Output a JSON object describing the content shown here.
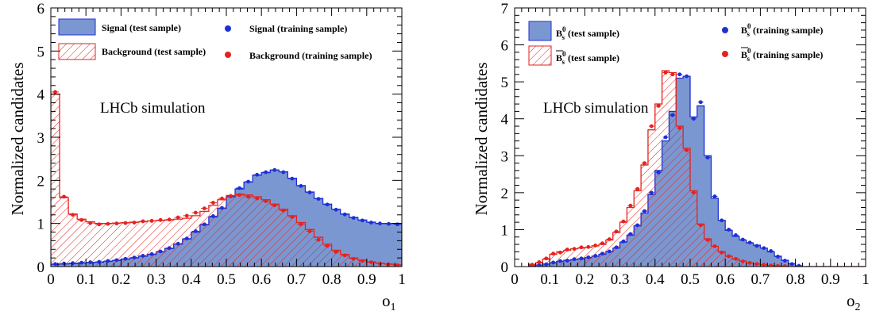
{
  "colors": {
    "signal_fill": "#7b97d1",
    "signal_line": "#1f2fd6",
    "background_line": "#e6221c",
    "axis": "#000000"
  },
  "chart_data": [
    {
      "type": "histogram",
      "xlabel": "o",
      "xlabel_sub": "1",
      "ylabel": "Normalized candidates",
      "annotation": "LHCb simulation",
      "xlim": [
        0,
        1
      ],
      "ylim": [
        0,
        6
      ],
      "xticks": [
        "0",
        "0.1",
        "0.2",
        "0.3",
        "0.4",
        "0.5",
        "0.6",
        "0.7",
        "0.8",
        "0.9",
        "1"
      ],
      "yticks": [
        "0",
        "1",
        "2",
        "3",
        "4",
        "5",
        "6"
      ],
      "bin_width": 0.025,
      "legend": [
        {
          "label": "Signal (test sample)",
          "style": "filled",
          "color": "#1f2fd6"
        },
        {
          "label": "Signal (training sample)",
          "style": "marker",
          "color": "#1f2fd6"
        },
        {
          "label": "Background (test sample)",
          "style": "hatched",
          "color": "#e6221c"
        },
        {
          "label": "Background (training sample)",
          "style": "marker",
          "color": "#e6221c"
        }
      ],
      "series": [
        {
          "name": "Signal (test sample)",
          "style": "filled",
          "values": [
            0.05,
            0.06,
            0.07,
            0.08,
            0.09,
            0.1,
            0.12,
            0.14,
            0.17,
            0.2,
            0.24,
            0.28,
            0.34,
            0.42,
            0.52,
            0.64,
            0.8,
            0.97,
            1.15,
            1.35,
            1.62,
            1.8,
            1.96,
            2.12,
            2.18,
            2.24,
            2.2,
            2.05,
            1.88,
            1.73,
            1.58,
            1.45,
            1.33,
            1.22,
            1.14,
            1.08,
            1.03,
            1.0,
            1.0,
            1.0
          ]
        },
        {
          "name": "Signal (training sample)",
          "style": "marker",
          "values": [
            0.06,
            0.07,
            0.08,
            0.09,
            0.1,
            0.11,
            0.13,
            0.15,
            0.18,
            0.21,
            0.25,
            0.29,
            0.35,
            0.43,
            0.53,
            0.65,
            0.82,
            0.98,
            1.17,
            1.36,
            1.63,
            1.82,
            1.97,
            2.13,
            2.19,
            2.24,
            2.19,
            2.04,
            1.87,
            1.72,
            1.57,
            1.44,
            1.32,
            1.21,
            1.13,
            1.07,
            1.02,
            1.0,
            0.99,
            0.98
          ]
        },
        {
          "name": "Background (test sample)",
          "style": "hatched",
          "values": [
            4.0,
            1.6,
            1.22,
            1.1,
            1.04,
            1.0,
            1.0,
            1.01,
            1.02,
            1.03,
            1.04,
            1.06,
            1.07,
            1.08,
            1.1,
            1.12,
            1.18,
            1.28,
            1.42,
            1.55,
            1.65,
            1.68,
            1.66,
            1.62,
            1.55,
            1.45,
            1.33,
            1.18,
            1.02,
            0.86,
            0.68,
            0.52,
            0.38,
            0.28,
            0.2,
            0.15,
            0.11,
            0.08,
            0.06,
            0.04
          ]
        },
        {
          "name": "Background (training sample)",
          "style": "marker",
          "values": [
            4.05,
            1.62,
            1.2,
            1.08,
            1.01,
            0.98,
            0.99,
            1.0,
            1.01,
            1.02,
            1.05,
            1.06,
            1.08,
            1.09,
            1.14,
            1.18,
            1.25,
            1.35,
            1.48,
            1.58,
            1.64,
            1.66,
            1.62,
            1.58,
            1.52,
            1.42,
            1.3,
            1.15,
            0.98,
            0.82,
            0.62,
            0.48,
            0.34,
            0.26,
            0.18,
            0.13,
            0.1,
            0.07,
            0.05,
            0.03
          ]
        }
      ]
    },
    {
      "type": "histogram",
      "xlabel": "o",
      "xlabel_sub": "2",
      "ylabel": "Normalized candidates",
      "annotation": "LHCb simulation",
      "xlim": [
        0,
        1
      ],
      "ylim": [
        0,
        7
      ],
      "xticks": [
        "0",
        "0.1",
        "0.2",
        "0.3",
        "0.4",
        "0.5",
        "0.6",
        "0.7",
        "0.8",
        "0.9",
        "1"
      ],
      "yticks": [
        "0",
        "1",
        "2",
        "3",
        "4",
        "5",
        "6",
        "7"
      ],
      "bin_start": 0.04,
      "bin_width": 0.02,
      "legend": [
        {
          "label": "B",
          "label_sup": "0",
          "label_sub": "s",
          "suffix": "(test sample)",
          "style": "filled",
          "color": "#1f2fd6"
        },
        {
          "label": "B",
          "label_sup": "0",
          "label_sub": "s",
          "suffix": "(training sample)",
          "style": "marker",
          "color": "#1f2fd6"
        },
        {
          "label": "B",
          "label_sup": "0",
          "label_sub": "s",
          "suffix": "(test sample)",
          "bar": true,
          "style": "hatched",
          "color": "#e6221c"
        },
        {
          "label": "B",
          "label_sup": "0",
          "label_sub": "s",
          "suffix": "(training sample)",
          "bar": true,
          "style": "marker",
          "color": "#e6221c"
        }
      ],
      "series": [
        {
          "name": "B_s^0 (test sample)",
          "style": "filled",
          "values": [
            0.02,
            0.04,
            0.07,
            0.1,
            0.14,
            0.17,
            0.19,
            0.21,
            0.24,
            0.28,
            0.33,
            0.4,
            0.5,
            0.66,
            0.85,
            1.1,
            1.45,
            1.95,
            2.6,
            3.4,
            4.2,
            5.1,
            5.15,
            4.05,
            4.35,
            3.0,
            1.85,
            1.25,
            0.98,
            0.82,
            0.72,
            0.64,
            0.58,
            0.5,
            0.4,
            0.28,
            0.17,
            0.08,
            0.02,
            0.0,
            0.0,
            0.0,
            0.0,
            0.0,
            0.0,
            0.0,
            0.0,
            0.0
          ]
        },
        {
          "name": "B_s^0 (training sample)",
          "style": "marker",
          "values": [
            0.01,
            0.04,
            0.06,
            0.11,
            0.15,
            0.16,
            0.2,
            0.22,
            0.25,
            0.29,
            0.35,
            0.41,
            0.52,
            0.68,
            0.88,
            1.12,
            1.5,
            2.0,
            2.55,
            3.5,
            4.1,
            5.2,
            5.15,
            4.0,
            4.45,
            2.95,
            1.9,
            1.25,
            1.0,
            0.85,
            0.73,
            0.65,
            0.56,
            0.5,
            0.42,
            0.27,
            0.16,
            0.07,
            0.02,
            0.0,
            0.0,
            0.0,
            0.0,
            0.0,
            0.0,
            0.0,
            0.0,
            0.0
          ]
        },
        {
          "name": "B̄_s^0 (test sample)",
          "style": "hatched",
          "values": [
            0.06,
            0.1,
            0.2,
            0.33,
            0.4,
            0.44,
            0.48,
            0.5,
            0.52,
            0.56,
            0.6,
            0.72,
            0.92,
            1.2,
            1.6,
            2.05,
            2.75,
            3.7,
            4.4,
            5.3,
            5.25,
            3.8,
            3.2,
            2.05,
            1.15,
            0.75,
            0.55,
            0.4,
            0.28,
            0.2,
            0.15,
            0.1,
            0.07,
            0.05,
            0.03,
            0.02,
            0.01,
            0.0,
            0.0,
            0.0,
            0.0,
            0.0,
            0.0,
            0.0,
            0.0,
            0.0,
            0.0,
            0.0
          ]
        },
        {
          "name": "B̄_s^0 (training sample)",
          "style": "marker",
          "values": [
            0.05,
            0.12,
            0.22,
            0.35,
            0.38,
            0.46,
            0.48,
            0.52,
            0.53,
            0.57,
            0.63,
            0.74,
            0.95,
            1.22,
            1.65,
            2.1,
            2.8,
            3.8,
            4.35,
            5.25,
            5.2,
            3.75,
            3.15,
            2.0,
            1.12,
            0.72,
            0.55,
            0.38,
            0.28,
            0.21,
            0.14,
            0.1,
            0.07,
            0.05,
            0.03,
            0.02,
            0.01,
            0.0,
            0.0,
            0.0,
            0.0,
            0.0,
            0.0,
            0.0,
            0.0,
            0.0,
            0.0,
            0.0
          ]
        }
      ]
    }
  ]
}
